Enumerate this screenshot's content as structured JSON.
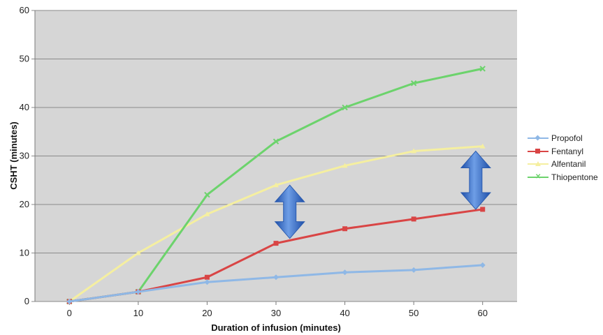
{
  "chart_data": {
    "type": "line",
    "xlabel": "Duration of infusion (minutes)",
    "ylabel": "CSHT (minutes)",
    "x": [
      0,
      10,
      20,
      30,
      40,
      50,
      60
    ],
    "xlim": [
      -5,
      65
    ],
    "ylim": [
      0,
      60
    ],
    "yticks": [
      0,
      10,
      20,
      30,
      40,
      50,
      60
    ],
    "grid": "horizontal",
    "legend_position": "right",
    "plot_background": "#d6d6d6",
    "series": [
      {
        "name": "Propofol",
        "color": "#8fb8e6",
        "marker": "diamond",
        "values": [
          0,
          2,
          4,
          5,
          6,
          6.5,
          7.5
        ]
      },
      {
        "name": "Fentanyl",
        "color": "#d94545",
        "marker": "square",
        "values": [
          0,
          2,
          5,
          12,
          15,
          17,
          19
        ]
      },
      {
        "name": "Alfentanil",
        "color": "#f5efa0",
        "marker": "triangle",
        "values": [
          0,
          10,
          18,
          24,
          28,
          31,
          32
        ]
      },
      {
        "name": "Thiopentone",
        "color": "#6cd36c",
        "marker": "x",
        "values": [
          0,
          2,
          22,
          33,
          40,
          45,
          48
        ]
      }
    ],
    "annotations": [
      {
        "type": "double-arrow",
        "x": 32,
        "y_from": 13,
        "y_to": 24,
        "color": "#3a6fc4"
      },
      {
        "type": "double-arrow",
        "x": 59,
        "y_from": 19,
        "y_to": 31,
        "color": "#3a6fc4"
      }
    ]
  }
}
